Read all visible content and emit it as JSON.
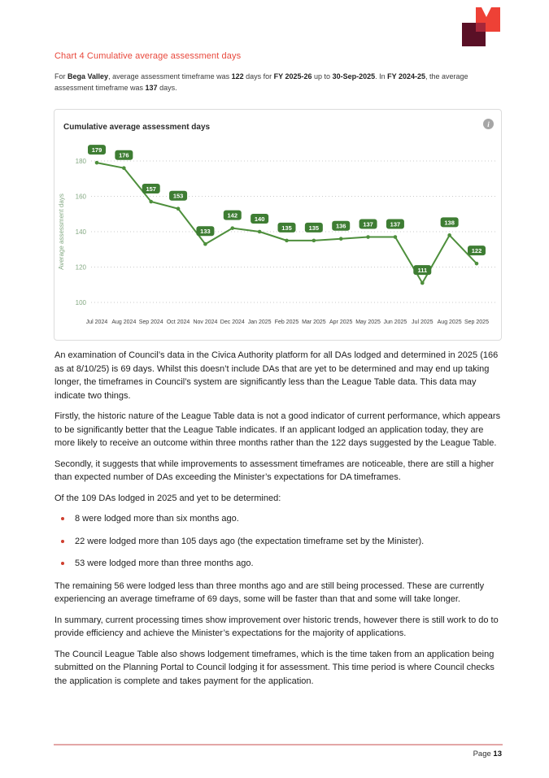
{
  "colors": {
    "accent_red": "#e8483c",
    "line_green": "#4e8f3c",
    "label_green": "#3e7d33",
    "axis_green": "#84a983",
    "tick_text": "#3f3f3f",
    "bullet_red": "#cf3f2f",
    "footer_line_pink": "#e3a6a6",
    "logo_red": "#ee4136",
    "logo_maroon": "#5a1026",
    "logo_overlap": "#a62639"
  },
  "chart_section": {
    "heading": "Chart 4 Cumulative average assessment days",
    "intro_segments": [
      {
        "text": "For ",
        "bold": false
      },
      {
        "text": "Bega Valley",
        "bold": true
      },
      {
        "text": ", average assessment timeframe was ",
        "bold": false
      },
      {
        "text": "122",
        "bold": true
      },
      {
        "text": " days for ",
        "bold": false
      },
      {
        "text": "FY 2025-26",
        "bold": true
      },
      {
        "text": " up to ",
        "bold": false
      },
      {
        "text": "30-Sep-2025",
        "bold": true
      },
      {
        "text": ". In ",
        "bold": false
      },
      {
        "text": "FY 2024-25",
        "bold": true
      },
      {
        "text": ", the average assessment timeframe was ",
        "bold": false
      },
      {
        "text": "137",
        "bold": true
      },
      {
        "text": " days.",
        "bold": false
      }
    ],
    "info_icon_glyph": "i"
  },
  "chart_data": {
    "type": "line",
    "title": "Cumulative average assessment days",
    "xlabel": "",
    "ylabel": "Average assessment days",
    "ylim": [
      100,
      180
    ],
    "yticks": [
      100,
      120,
      140,
      160,
      180
    ],
    "grid": "dotted-horizontal",
    "legend": "none",
    "categories": [
      "Jul 2024",
      "Aug 2024",
      "Sep 2024",
      "Oct 2024",
      "Nov 2024",
      "Dec 2024",
      "Jan 2025",
      "Feb 2025",
      "Mar 2025",
      "Apr 2025",
      "May 2025",
      "Jun 2025",
      "Jul 2025",
      "Aug 2025",
      "Sep 2025"
    ],
    "values": [
      179,
      176,
      157,
      153,
      133,
      142,
      140,
      135,
      135,
      136,
      137,
      137,
      111,
      138,
      122
    ],
    "point_labels": [
      "179",
      "176",
      "157",
      "153",
      "133",
      "142",
      "140",
      "135",
      "135",
      "136",
      "137",
      "137",
      "111",
      "138",
      "122"
    ]
  },
  "body": {
    "paragraphs_before": [
      "An examination of Council’s data in the Civica Authority platform for all DAs lodged and determined in 2025 (166 as at 8/10/25) is 69 days. Whilst this doesn’t include DAs that are yet to be determined and may end up taking longer, the timeframes in Council’s system are significantly less than the League Table data. This data may indicate two things.",
      "Firstly, the historic nature of the League Table data is not a good indicator of current performance, which appears to be significantly better that the League Table indicates. If an applicant lodged an application today, they are more likely to receive an outcome within three months rather than the 122 days suggested by the League Table.",
      "Secondly, it suggests that while improvements to assessment timeframes are noticeable, there are still a higher than expected number of DAs exceeding the Minister’s expectations for DA timeframes.",
      "Of the 109 DAs lodged in 2025 and yet to be determined:"
    ],
    "bullets": [
      "8 were lodged more than six months ago.",
      "22 were lodged more than 105 days ago (the expectation timeframe set by the Minister).",
      "53 were lodged more than three months ago."
    ],
    "paragraphs_after": [
      "The remaining 56 were lodged less than three months ago and are still being processed. These are currently experiencing an average timeframe of 69 days, some will be faster than that and some will take longer.",
      "In summary, current processing times show improvement over historic trends, however there is still work to do to provide efficiency and achieve the Minister’s expectations for the majority of applications.",
      "The Council League Table also shows lodgement timeframes, which is the time taken from an application being submitted on the Planning Portal to Council lodging it for assessment. This time period is where Council checks the application is complete and takes payment for the application."
    ]
  },
  "footer": {
    "page_label": "Page ",
    "page_number": "13"
  }
}
